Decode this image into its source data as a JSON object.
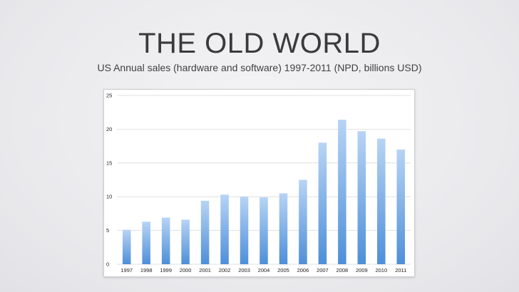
{
  "slide": {
    "title": "THE OLD WORLD",
    "subtitle": "US Annual sales (hardware and software) 1997-2011 (NPD, billions USD)"
  },
  "chart_data": {
    "type": "bar",
    "title": "",
    "xlabel": "",
    "ylabel": "",
    "categories": [
      "1997",
      "1998",
      "1999",
      "2000",
      "2001",
      "2002",
      "2003",
      "2004",
      "2005",
      "2006",
      "2007",
      "2008",
      "2009",
      "2010",
      "2011"
    ],
    "values": [
      5.1,
      6.3,
      6.9,
      6.6,
      9.4,
      10.3,
      10.0,
      9.9,
      10.5,
      12.5,
      18.0,
      21.4,
      19.7,
      18.6,
      17.0
    ],
    "ylim": [
      0,
      25
    ],
    "yticks": [
      0,
      5,
      10,
      15,
      20,
      25
    ],
    "grid": true,
    "legend": "none",
    "colors": {
      "bar_top": "#b7d4f5",
      "bar_bottom": "#4e8fd8",
      "grid": "#d9d9d9"
    }
  }
}
